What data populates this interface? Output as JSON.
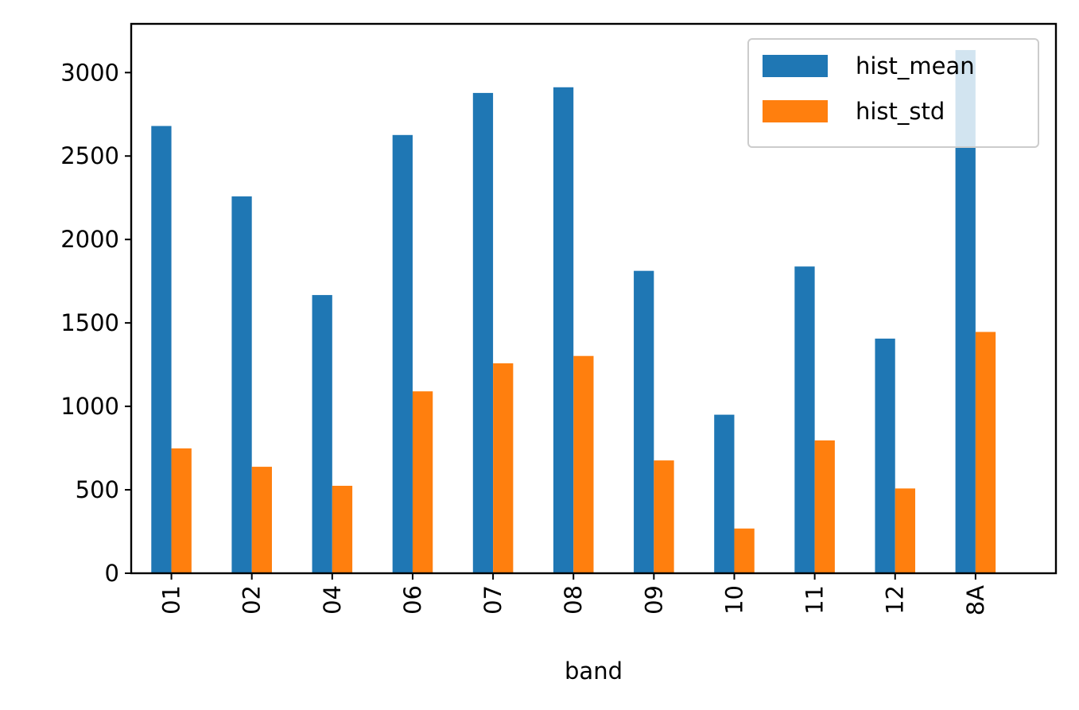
{
  "chart_data": {
    "type": "bar",
    "categories": [
      "01",
      "02",
      "04",
      "06",
      "07",
      "08",
      "09",
      "10",
      "11",
      "12",
      "8A"
    ],
    "series": [
      {
        "name": "hist_mean",
        "color": "#1f77b4",
        "values": [
          2680,
          2258,
          1667,
          2626,
          2878,
          2912,
          1812,
          950,
          1838,
          1406,
          3135
        ]
      },
      {
        "name": "hist_std",
        "color": "#ff7f0e",
        "values": [
          748,
          638,
          524,
          1090,
          1258,
          1302,
          676,
          268,
          796,
          508,
          1446
        ]
      }
    ],
    "title": "",
    "xlabel": "band",
    "ylabel": "",
    "ylim": [
      0,
      3292
    ],
    "yticks": [
      0,
      500,
      1000,
      1500,
      2000,
      2500,
      3000
    ],
    "grid": false,
    "legend_position": "top-right"
  }
}
